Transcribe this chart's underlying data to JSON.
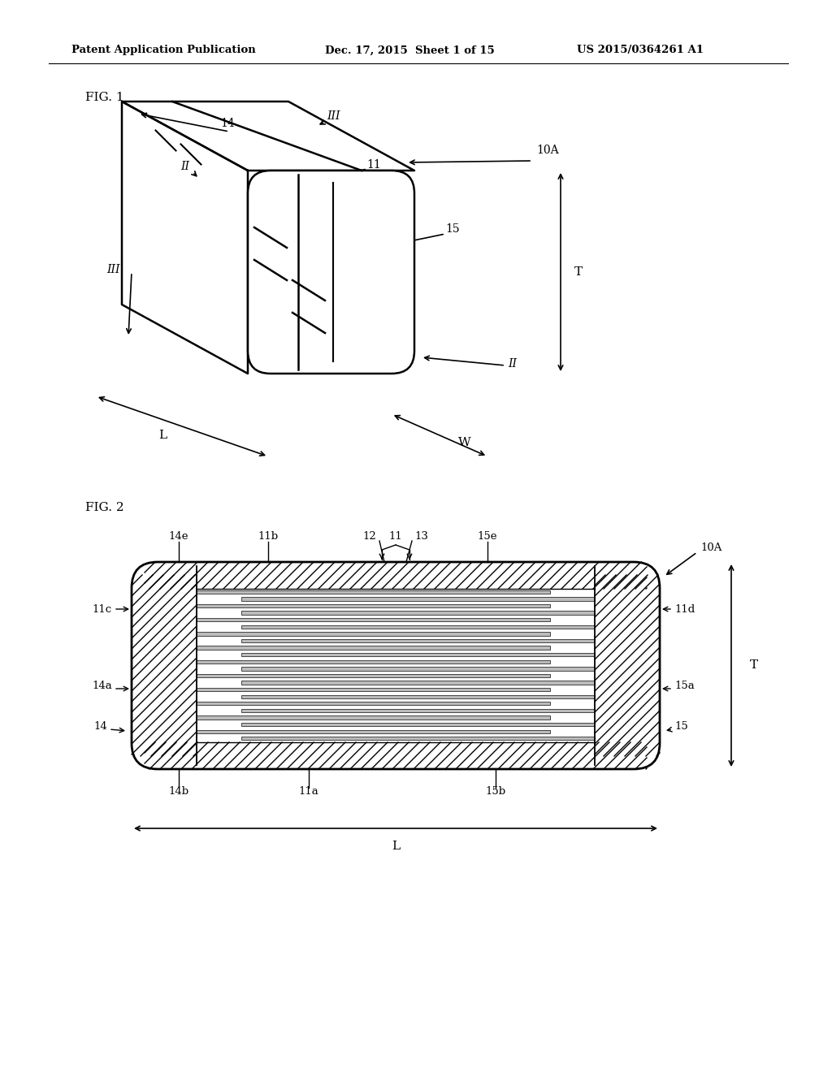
{
  "bg_color": "#ffffff",
  "header_left": "Patent Application Publication",
  "header_mid": "Dec. 17, 2015  Sheet 1 of 15",
  "header_right": "US 2015/0364261 A1",
  "fig1_label": "FIG. 1",
  "fig2_label": "FIG. 2"
}
